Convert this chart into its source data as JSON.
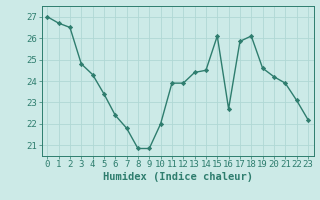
{
  "x": [
    0,
    1,
    2,
    3,
    4,
    5,
    6,
    7,
    8,
    9,
    10,
    11,
    12,
    13,
    14,
    15,
    16,
    17,
    18,
    19,
    20,
    21,
    22,
    23
  ],
  "y": [
    27.0,
    26.7,
    26.5,
    24.8,
    24.3,
    23.4,
    22.4,
    21.8,
    20.85,
    20.85,
    22.0,
    23.9,
    23.9,
    24.4,
    24.5,
    26.1,
    22.7,
    25.85,
    26.1,
    24.6,
    24.2,
    23.9,
    23.1,
    22.2
  ],
  "line_color": "#2e7d6e",
  "marker": "D",
  "marker_size": 2.2,
  "bg_color": "#cceae7",
  "grid_color": "#b0d8d4",
  "xlabel": "Humidex (Indice chaleur)",
  "xlim": [
    -0.5,
    23.5
  ],
  "ylim": [
    20.5,
    27.5
  ],
  "yticks": [
    21,
    22,
    23,
    24,
    25,
    26,
    27
  ],
  "xticks": [
    0,
    1,
    2,
    3,
    4,
    5,
    6,
    7,
    8,
    9,
    10,
    11,
    12,
    13,
    14,
    15,
    16,
    17,
    18,
    19,
    20,
    21,
    22,
    23
  ],
  "tick_color": "#2e7d6e",
  "label_color": "#2e7d6e",
  "xlabel_fontsize": 7.5,
  "tick_fontsize": 6.5,
  "linewidth": 1.0
}
